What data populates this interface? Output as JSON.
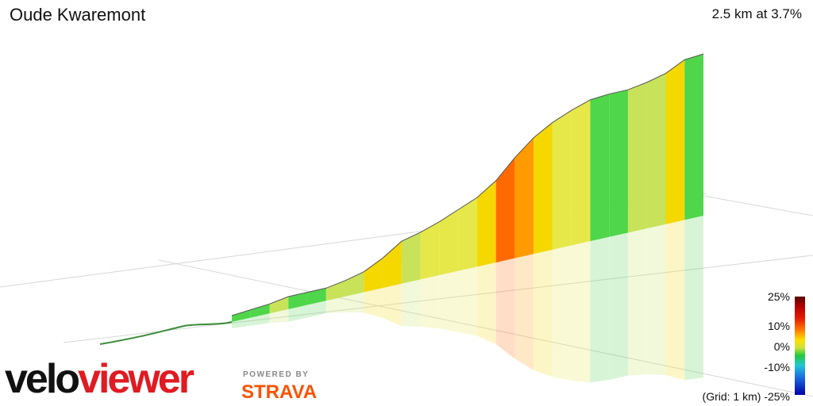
{
  "header": {
    "title": "Oude Kwaremont",
    "summary": "2.5 km at 3.7%"
  },
  "legend": {
    "labels": [
      "25%",
      "10%",
      "0%",
      "-10%",
      "-25%"
    ],
    "grid_note": "(Grid: 1 km)"
  },
  "branding": {
    "logo_part1": "velo",
    "logo_part2": "viewer",
    "powered_by": "POWERED BY",
    "strava": "STRAVA"
  },
  "chart_data": {
    "type": "area",
    "xlabel": "",
    "ylabel": "",
    "grid": true,
    "legend": "bottom-right color scale",
    "profile": {
      "x": [
        0,
        0.1,
        0.2,
        0.3,
        0.4,
        0.5,
        0.6,
        0.7,
        0.8,
        0.9,
        1.0,
        1.1,
        1.2,
        1.3,
        1.4,
        1.5,
        1.6,
        1.7,
        1.8,
        1.9,
        2.0,
        2.1,
        2.2,
        2.3,
        2.4,
        2.5
      ],
      "gradient_pct": [
        1,
        1,
        1,
        2,
        0,
        0,
        2,
        3,
        6,
        8,
        3,
        4,
        5,
        5,
        8,
        12,
        10,
        7,
        5,
        4,
        1,
        0,
        2,
        3,
        6,
        1
      ]
    },
    "colors": {
      "green": "#3ad13a",
      "yellow": "#f2e600",
      "orange": "#ff7a00"
    }
  }
}
